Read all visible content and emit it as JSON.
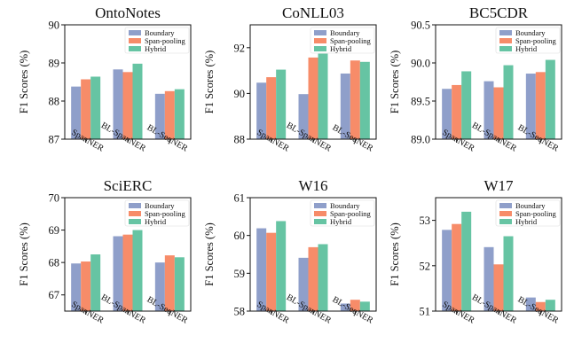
{
  "colors": {
    "Boundary": "#8f9fca",
    "Span-pooling": "#f78c69",
    "Hybrid": "#66c4a3",
    "axis": "#111111"
  },
  "chart_data": [
    {
      "type": "bar",
      "title": "OntoNotes",
      "ylabel": "F1 Scores (%)",
      "categories": [
        "SpanNER",
        "BL-SpanNER",
        "BL-SeqNER"
      ],
      "series": [
        {
          "name": "Boundary",
          "values": [
            88.38,
            88.83,
            88.19
          ]
        },
        {
          "name": "Span-pooling",
          "values": [
            88.57,
            88.76,
            88.26
          ]
        },
        {
          "name": "Hybrid",
          "values": [
            88.64,
            88.98,
            88.31
          ]
        }
      ],
      "ylim": [
        87,
        90
      ],
      "yticks": [
        "87",
        "88",
        "89",
        "90"
      ],
      "legend": "top-right",
      "grid": false
    },
    {
      "type": "bar",
      "title": "CoNLL03",
      "ylabel": "F1 Scores (%)",
      "categories": [
        "SpanNER",
        "BL-SpanNER",
        "BL-SeqNER"
      ],
      "series": [
        {
          "name": "Boundary",
          "values": [
            90.47,
            89.97,
            90.87
          ]
        },
        {
          "name": "Span-pooling",
          "values": [
            90.71,
            91.57,
            91.44
          ]
        },
        {
          "name": "Hybrid",
          "values": [
            91.04,
            91.74,
            91.38
          ]
        }
      ],
      "ylim": [
        88,
        93
      ],
      "yticks": [
        "88",
        "90",
        "92"
      ],
      "legend": "top-right",
      "grid": false
    },
    {
      "type": "bar",
      "title": "BC5CDR",
      "ylabel": "F1 Scores (%)",
      "categories": [
        "SpanNER",
        "BL-SpanNER",
        "BL-SeqNER"
      ],
      "series": [
        {
          "name": "Boundary",
          "values": [
            89.66,
            89.76,
            89.86
          ]
        },
        {
          "name": "Span-pooling",
          "values": [
            89.71,
            89.68,
            89.88
          ]
        },
        {
          "name": "Hybrid",
          "values": [
            89.89,
            89.97,
            90.04
          ]
        }
      ],
      "ylim": [
        89.0,
        90.5
      ],
      "yticks": [
        "89.0",
        "89.5",
        "90.0",
        "90.5"
      ],
      "legend": "top-right",
      "grid": false
    },
    {
      "type": "bar",
      "title": "SciERC",
      "ylabel": "F1 Scores (%)",
      "categories": [
        "SpanNER",
        "BL-SpanNER",
        "BL-SeqNER"
      ],
      "series": [
        {
          "name": "Boundary",
          "values": [
            67.97,
            68.81,
            68.0
          ]
        },
        {
          "name": "Span-pooling",
          "values": [
            68.03,
            68.86,
            68.22
          ]
        },
        {
          "name": "Hybrid",
          "values": [
            68.25,
            69.0,
            68.16
          ]
        }
      ],
      "ylim": [
        66.5,
        70
      ],
      "yticks": [
        "67",
        "68",
        "69",
        "70"
      ],
      "legend": "top-right",
      "grid": false
    },
    {
      "type": "bar",
      "title": "W16",
      "ylabel": "F1 Scores (%)",
      "categories": [
        "SpanNER",
        "BL-SpanNER",
        "BL-SeqNER"
      ],
      "series": [
        {
          "name": "Boundary",
          "values": [
            60.19,
            59.41,
            58.2
          ]
        },
        {
          "name": "Span-pooling",
          "values": [
            60.07,
            59.69,
            58.3
          ]
        },
        {
          "name": "Hybrid",
          "values": [
            60.38,
            59.77,
            58.25
          ]
        }
      ],
      "ylim": [
        58,
        61
      ],
      "yticks": [
        "58",
        "59",
        "60",
        "61"
      ],
      "legend": "top-right",
      "grid": false
    },
    {
      "type": "bar",
      "title": "W17",
      "ylabel": "F1 Scores (%)",
      "categories": [
        "SpanNER",
        "BL-SpanNER",
        "BL-SeqNER"
      ],
      "series": [
        {
          "name": "Boundary",
          "values": [
            52.79,
            52.41,
            51.3
          ]
        },
        {
          "name": "Span-pooling",
          "values": [
            52.92,
            52.03,
            51.2
          ]
        },
        {
          "name": "Hybrid",
          "values": [
            53.19,
            52.65,
            51.25
          ]
        }
      ],
      "ylim": [
        51,
        53.5
      ],
      "yticks": [
        "51",
        "52",
        "53"
      ],
      "legend": "top-right",
      "grid": false
    }
  ]
}
